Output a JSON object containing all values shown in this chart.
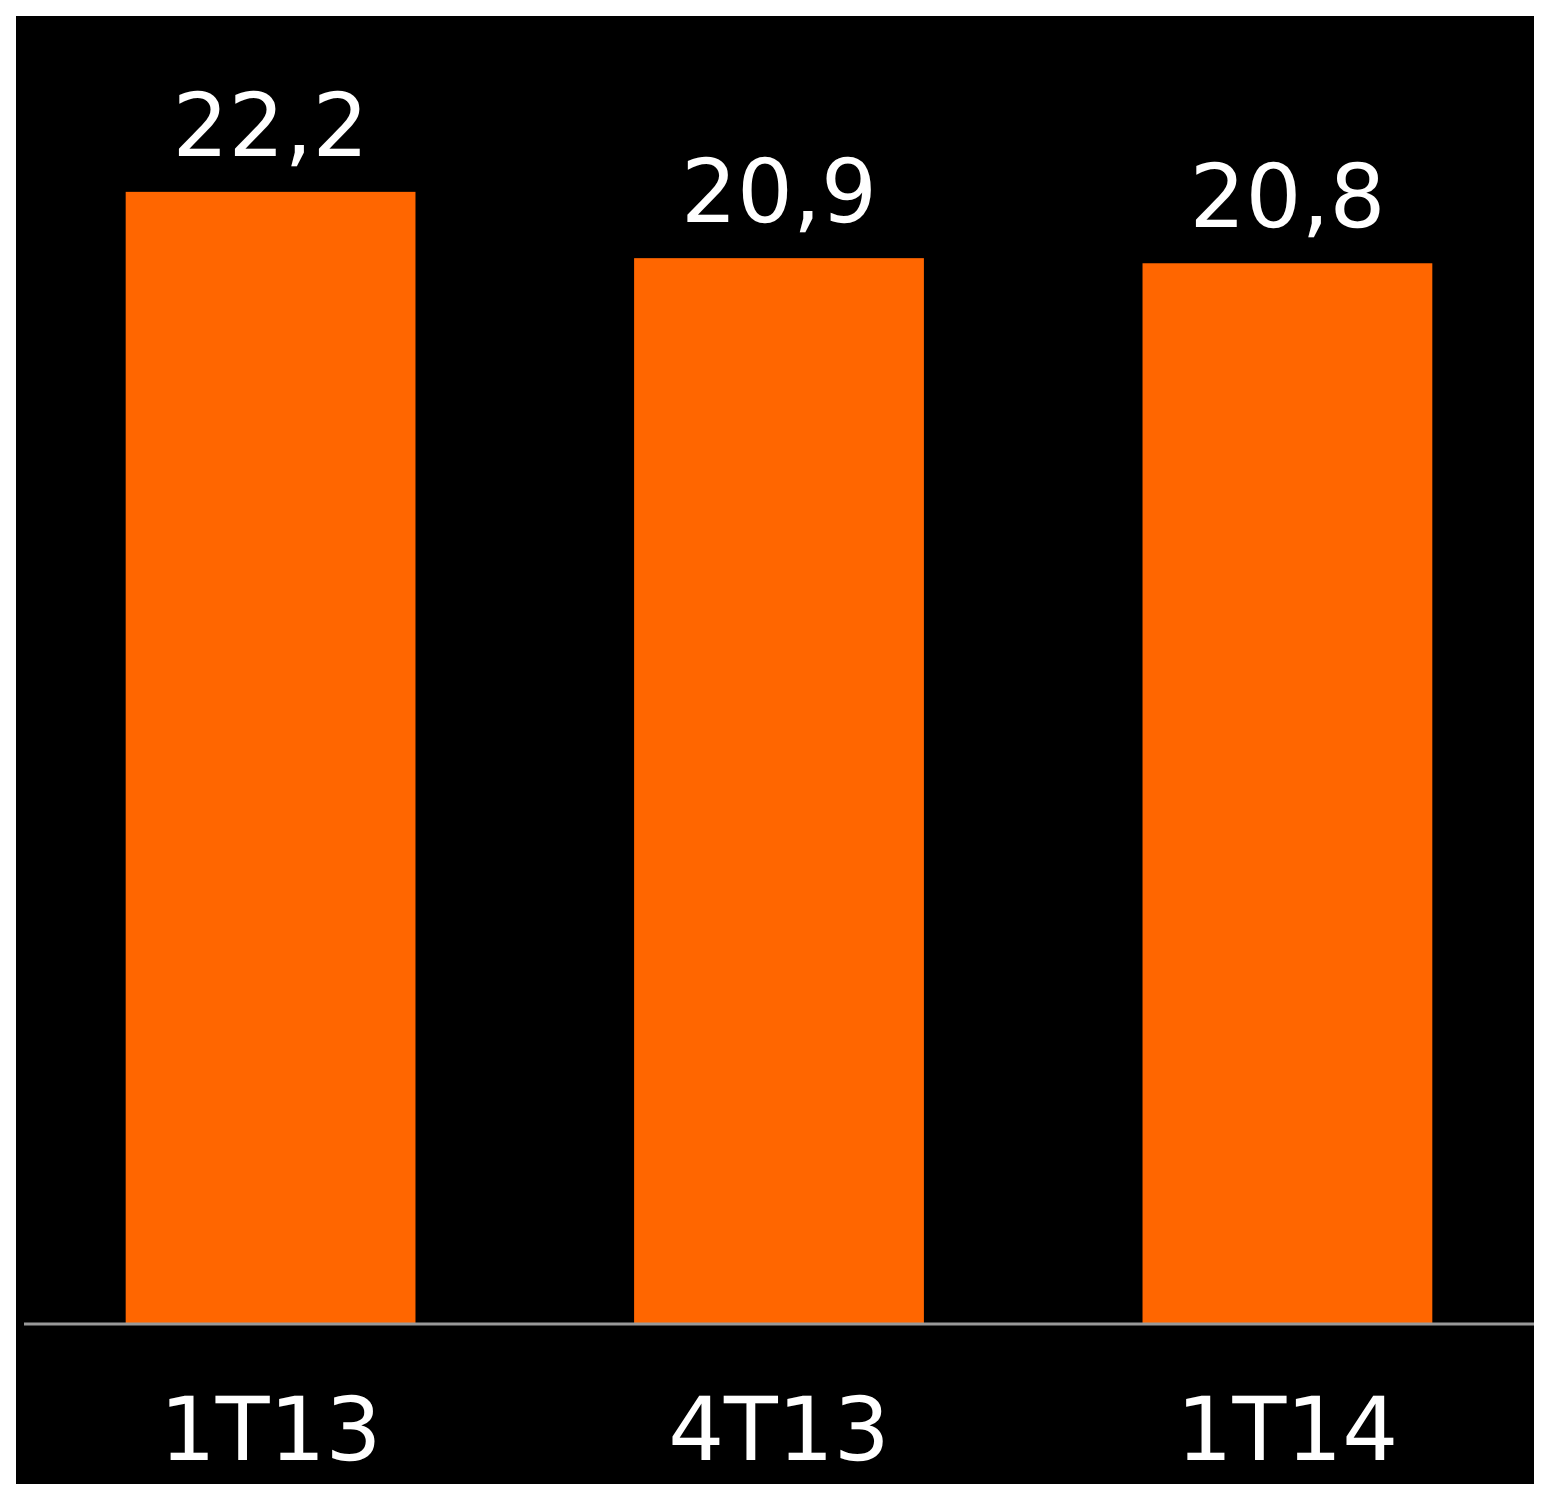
{
  "chart_data": {
    "type": "bar",
    "categories": [
      "1T13",
      "4T13",
      "1T14"
    ],
    "values": [
      22.2,
      20.9,
      20.8
    ],
    "value_labels": [
      "22,2",
      "20,9",
      "20,8"
    ],
    "color": "#ff6600"
  }
}
